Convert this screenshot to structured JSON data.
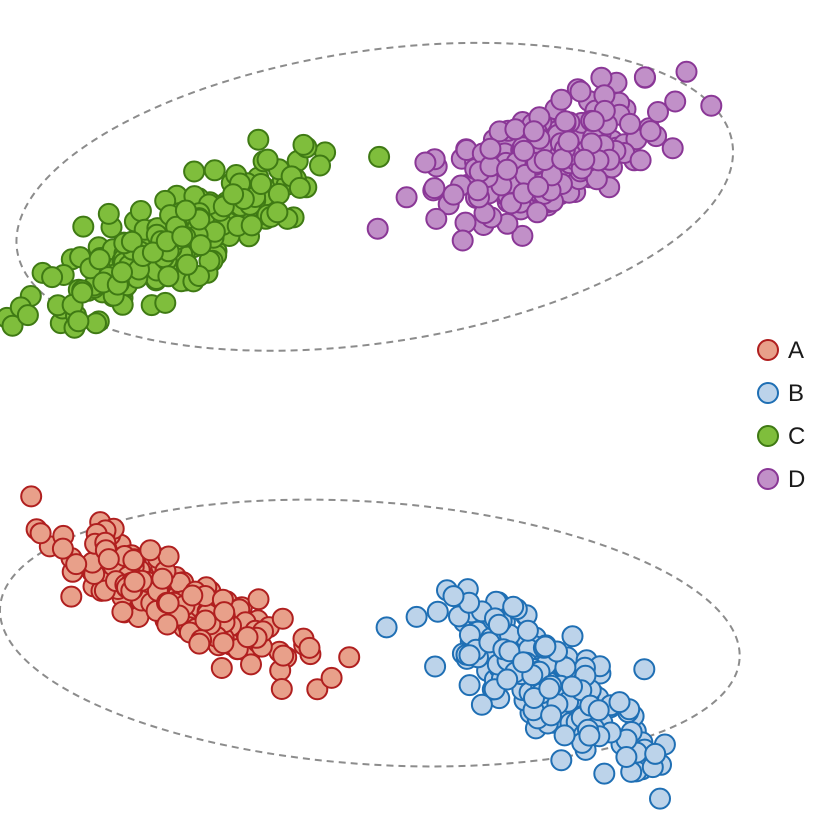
{
  "chart_data": {
    "type": "scatter",
    "title": "",
    "xlabel": "",
    "ylabel": "",
    "xlim": [
      0,
      100
    ],
    "ylim": [
      0,
      100
    ],
    "grid": false,
    "axes_visible": false,
    "legend_position": "right",
    "legend": [
      {
        "label": "A",
        "series": "A"
      },
      {
        "label": "B",
        "series": "B"
      },
      {
        "label": "C",
        "series": "C"
      },
      {
        "label": "D",
        "series": "D"
      }
    ],
    "series": [
      {
        "name": "A",
        "fill": "#e8a08a",
        "stroke": "#b01f1f",
        "cluster": {
          "center": [
            20.9,
            27.1
          ],
          "count": 190,
          "spread_major": 7.8,
          "spread_minor": 1.9,
          "angle_deg": -27,
          "seed": 11
        }
      },
      {
        "name": "B",
        "fill": "#bcd3ea",
        "stroke": "#1f6fb4",
        "cluster": {
          "center": [
            66.0,
            17.0
          ],
          "count": 230,
          "spread_major": 7.4,
          "spread_minor": 2.6,
          "angle_deg": -36,
          "seed": 23
        }
      },
      {
        "name": "C",
        "fill": "#7fbe3c",
        "stroke": "#3f7a14",
        "cluster": {
          "center": [
            22.5,
            71.2
          ],
          "count": 260,
          "spread_major": 8.8,
          "spread_minor": 2.2,
          "angle_deg": 28,
          "seed": 37
        }
      },
      {
        "name": "D",
        "fill": "#c190c8",
        "stroke": "#8a3796",
        "cluster": {
          "center": [
            66.5,
            80.8
          ],
          "count": 250,
          "spread_major": 6.5,
          "spread_minor": 2.8,
          "angle_deg": 20,
          "seed": 53
        }
      }
    ],
    "group_outlines": [
      {
        "name": "C-D",
        "center": [
          45.7,
          76.0
        ],
        "radius_x": 44.1,
        "radius_y": 17.8,
        "angle_deg": 8.5
      },
      {
        "name": "A-B",
        "center": [
          45.1,
          22.8
        ],
        "radius_x": 45.2,
        "radius_y": 16.0,
        "angle_deg": -4
      }
    ]
  }
}
